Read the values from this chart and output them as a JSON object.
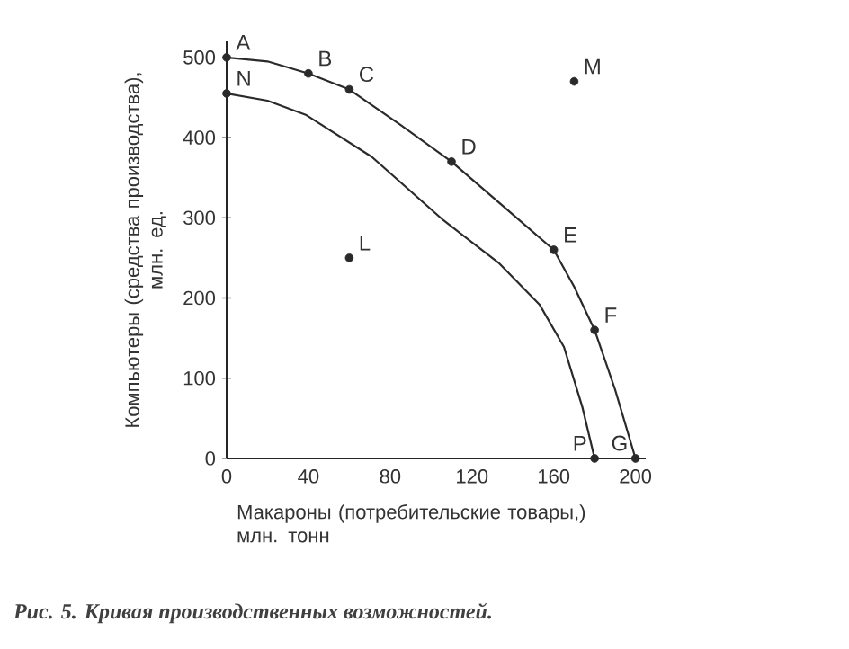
{
  "chart_data": {
    "type": "line",
    "xlabel": "Макароны (потребительские товары,)\nмлн. тонн",
    "ylabel": "Компьютеры (средства производства),\nмлн. ед.",
    "xlim": [
      0,
      205
    ],
    "ylim": [
      0,
      520
    ],
    "xticks": [
      0,
      40,
      80,
      120,
      160,
      200
    ],
    "yticks": [
      0,
      100,
      200,
      300,
      400,
      500
    ],
    "series": [
      {
        "color": "#2a2a2a",
        "marker": "none",
        "x": [
          0,
          20,
          40,
          60,
          85,
          110,
          135,
          160,
          170,
          180,
          190,
          200
        ],
        "values": [
          500,
          495,
          480,
          460,
          416,
          370,
          315,
          260,
          214,
          160,
          86,
          0
        ]
      },
      {
        "color": "#2a2a2a",
        "marker": "none",
        "x": [
          0,
          20,
          39,
          71,
          106,
          133,
          153,
          165,
          174,
          180
        ],
        "values": [
          455,
          446,
          428,
          376,
          297,
          244,
          192,
          139,
          64,
          0
        ]
      },
      {
        "type": "scatter",
        "color": "#2a2a2a",
        "marker": "circle",
        "x": [
          0,
          40,
          60,
          110,
          160,
          180,
          200,
          0,
          180,
          60,
          170
        ],
        "values": [
          500,
          480,
          460,
          370,
          260,
          160,
          0,
          455,
          0,
          250,
          470
        ]
      }
    ],
    "annotations": [
      {
        "text": "A",
        "x": 0,
        "y": 500
      },
      {
        "text": "B",
        "x": 40,
        "y": 480
      },
      {
        "text": "C",
        "x": 60,
        "y": 460
      },
      {
        "text": "D",
        "x": 110,
        "y": 370
      },
      {
        "text": "E",
        "x": 160,
        "y": 260
      },
      {
        "text": "F",
        "x": 180,
        "y": 160
      },
      {
        "text": "G",
        "x": 200,
        "y": 0
      },
      {
        "text": "N",
        "x": 0,
        "y": 455
      },
      {
        "text": "P",
        "x": 180,
        "y": 0
      },
      {
        "text": "L",
        "x": 60,
        "y": 250
      },
      {
        "text": "M",
        "x": 170,
        "y": 470
      },
      "Рис. 5. Кривая производственных возможностей."
    ]
  }
}
